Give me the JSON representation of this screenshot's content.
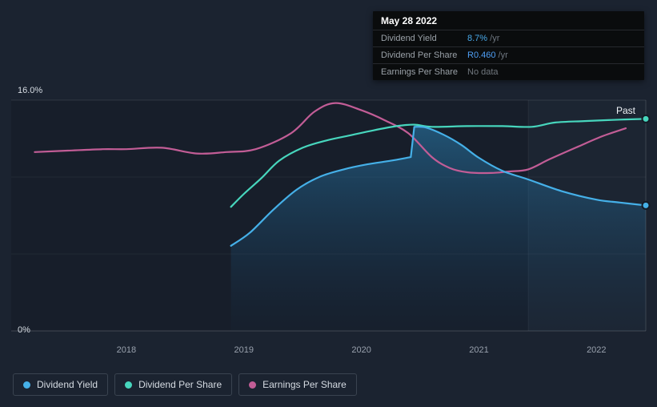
{
  "past_label": "Past",
  "axis": {
    "y_top_label": "16.0%",
    "y_bottom_label": "0%"
  },
  "tooltip": {
    "date": "May 28 2022",
    "rows": [
      {
        "label": "Dividend Yield",
        "value": "8.7%",
        "suffix": " /yr",
        "color": "#49a8e8"
      },
      {
        "label": "Dividend Per Share",
        "value": "R0.460",
        "suffix": " /yr",
        "color": "#4f9ff5"
      },
      {
        "label": "Earnings Per Share",
        "value": "No data",
        "suffix": "",
        "color": "#70777e"
      }
    ]
  },
  "legend": [
    {
      "label": "Dividend Yield",
      "color_key": "dividend_yield"
    },
    {
      "label": "Dividend Per Share",
      "color_key": "dividend_per_share"
    },
    {
      "label": "Earnings Per Share",
      "color_key": "earnings_per_share"
    }
  ],
  "colors": {
    "background": "#1b2330",
    "grid": "rgba(255,255,255,0.08)",
    "dividend_yield": "#45b0e8",
    "dividend_per_share": "#47d6bd",
    "earnings_per_share": "#c25d96",
    "area_top": "rgba(44,136,190,0.50)",
    "area_bottom": "rgba(22,70,110,0.04)",
    "past_overlay": "rgba(140,170,210,0.05)"
  },
  "chart_data": {
    "type": "line",
    "x_domain": [
      2017.02,
      2022.42
    ],
    "y_domain": [
      0,
      16
    ],
    "y_unit": "%",
    "x_ticks": [
      2018,
      2019,
      2020,
      2021,
      2022
    ],
    "past_divider_x": 2021.42,
    "series": [
      {
        "name": "Earnings Per Share",
        "color_key": "earnings_per_share",
        "area": false,
        "end_dot": false,
        "segments": [
          [
            [
              2017.22,
              12.4
            ],
            [
              2017.5,
              12.5
            ],
            [
              2017.8,
              12.6
            ],
            [
              2018.0,
              12.6
            ],
            [
              2018.3,
              12.7
            ],
            [
              2018.6,
              12.3
            ],
            [
              2018.85,
              12.4
            ],
            [
              2019.1,
              12.6
            ],
            [
              2019.4,
              13.7
            ],
            [
              2019.6,
              15.2
            ],
            [
              2019.78,
              15.8
            ],
            [
              2020.0,
              15.3
            ],
            [
              2020.2,
              14.6
            ],
            [
              2020.4,
              13.7
            ],
            [
              2020.6,
              12.05
            ],
            [
              2020.75,
              11.3
            ],
            [
              2020.9,
              11.0
            ],
            [
              2021.1,
              10.95
            ],
            [
              2021.25,
              11.05
            ],
            [
              2021.42,
              11.2
            ],
            [
              2021.6,
              11.9
            ],
            [
              2021.85,
              12.8
            ],
            [
              2022.05,
              13.5
            ],
            [
              2022.25,
              14.05
            ]
          ]
        ]
      },
      {
        "name": "Dividend Per Share",
        "color_key": "dividend_per_share",
        "area": false,
        "end_dot": true,
        "segments": [
          [
            [
              2018.89,
              8.6
            ],
            [
              2019.0,
              9.5
            ],
            [
              2019.15,
              10.6
            ],
            [
              2019.3,
              11.8
            ],
            [
              2019.5,
              12.7
            ],
            [
              2019.7,
              13.2
            ],
            [
              2019.9,
              13.55
            ],
            [
              2020.1,
              13.9
            ],
            [
              2020.3,
              14.2
            ],
            [
              2020.45,
              14.3
            ],
            [
              2020.6,
              14.15
            ],
            [
              2020.9,
              14.2
            ],
            [
              2021.2,
              14.2
            ],
            [
              2021.45,
              14.15
            ],
            [
              2021.65,
              14.45
            ],
            [
              2021.9,
              14.55
            ],
            [
              2022.2,
              14.65
            ],
            [
              2022.42,
              14.7
            ]
          ]
        ]
      },
      {
        "name": "Dividend Yield",
        "color_key": "dividend_yield",
        "area": true,
        "end_dot": true,
        "segments": [
          [
            [
              2018.89,
              5.9
            ],
            [
              2019.05,
              6.8
            ],
            [
              2019.25,
              8.4
            ],
            [
              2019.45,
              9.8
            ],
            [
              2019.65,
              10.7
            ],
            [
              2019.85,
              11.2
            ],
            [
              2020.05,
              11.55
            ],
            [
              2020.25,
              11.8
            ],
            [
              2020.42,
              12.05
            ]
          ],
          [
            [
              2020.45,
              14.15
            ],
            [
              2020.55,
              14.1
            ],
            [
              2020.7,
              13.6
            ],
            [
              2020.85,
              12.9
            ],
            [
              2021.0,
              12.0
            ],
            [
              2021.2,
              11.1
            ],
            [
              2021.42,
              10.5
            ],
            [
              2021.7,
              9.7
            ],
            [
              2022.0,
              9.1
            ],
            [
              2022.2,
              8.9
            ],
            [
              2022.42,
              8.7
            ]
          ]
        ]
      }
    ]
  }
}
